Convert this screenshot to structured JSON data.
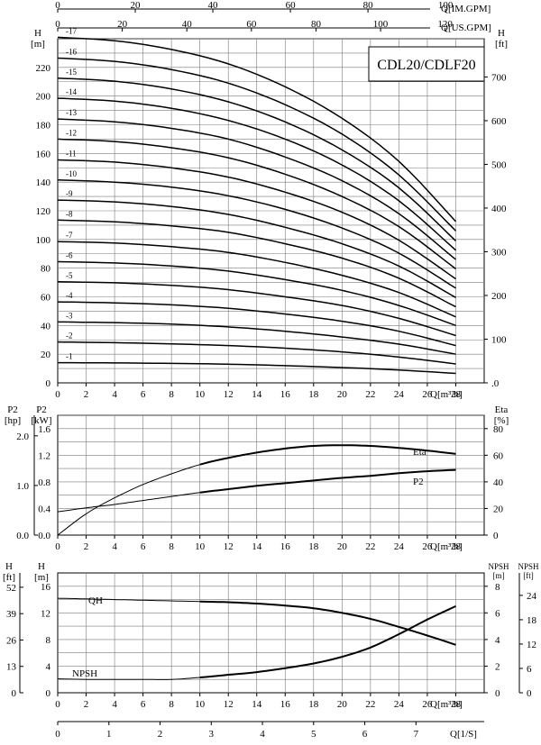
{
  "colors": {
    "ink": "#000000",
    "grid": "#7a7a7a",
    "background": "#ffffff"
  },
  "chart_data": [
    {
      "type": "line",
      "title": "CDL20/CDLF20",
      "xlabel": "Q[m³/h]",
      "ylabel_left_unit": "[m]",
      "ylabel_left": "H",
      "ylabel_right_unit": "[ft]",
      "ylabel_right": "H",
      "top_axis_1_label": "Q[IM.GPM]",
      "top_axis_2_label": "Q[US.GPM]",
      "top_axis_1_ticks": [
        "0",
        "20",
        "40",
        "60",
        "80",
        "100"
      ],
      "top_axis_2_ticks": [
        "0",
        "20",
        "40",
        "60",
        "80",
        "100",
        "120"
      ],
      "x_ticks": [
        "0",
        "2",
        "4",
        "6",
        "8",
        "10",
        "12",
        "14",
        "16",
        "18",
        "20",
        "22",
        "24",
        "26",
        "28"
      ],
      "y_ticks_left": [
        "0",
        "20",
        "40",
        "60",
        "80",
        "100",
        "120",
        "140",
        "160",
        "180",
        "200",
        "220"
      ],
      "y_ticks_right": [
        ".0",
        "100",
        "200",
        "300",
        "400",
        "500",
        "600",
        "700"
      ],
      "xlim": [
        0,
        30
      ],
      "ylim": [
        0,
        240
      ],
      "grid": true,
      "series": [
        {
          "name": "-1",
          "x": [
            0,
            4,
            8,
            12,
            16,
            20,
            24,
            28
          ],
          "values": [
            14.1,
            13.9,
            13.6,
            13.0,
            12.0,
            10.7,
            8.9,
            6.6
          ]
        },
        {
          "name": "-2",
          "x": [
            0,
            4,
            8,
            12,
            16,
            20,
            24,
            28
          ],
          "values": [
            28.5,
            28.0,
            27.2,
            26.0,
            24.2,
            21.6,
            18.0,
            13.2
          ]
        },
        {
          "name": "-3",
          "x": [
            0,
            4,
            8,
            12,
            16,
            20,
            24,
            28
          ],
          "values": [
            42.5,
            42.0,
            41.0,
            39.0,
            36.0,
            32.0,
            27.0,
            20.0
          ]
        },
        {
          "name": "-4",
          "x": [
            0,
            4,
            8,
            12,
            16,
            20,
            24,
            28
          ],
          "values": [
            56.5,
            55.8,
            54.4,
            52.0,
            48.0,
            43.0,
            36.0,
            26.0
          ]
        },
        {
          "name": "-5",
          "x": [
            0,
            4,
            8,
            12,
            16,
            20,
            24,
            28
          ],
          "values": [
            70.5,
            69.8,
            68.0,
            65.0,
            60.0,
            54.0,
            45.0,
            33.0
          ]
        },
        {
          "name": "-6",
          "x": [
            0,
            4,
            8,
            12,
            16,
            20,
            24,
            28
          ],
          "values": [
            84.5,
            83.6,
            81.5,
            78.0,
            72.0,
            64.5,
            54.0,
            40.0
          ]
        },
        {
          "name": "-7",
          "x": [
            0,
            4,
            8,
            12,
            16,
            20,
            24,
            28
          ],
          "values": [
            98.5,
            97.5,
            95.0,
            91.0,
            84.0,
            75.0,
            63.0,
            46.0
          ]
        },
        {
          "name": "-8",
          "x": [
            0,
            4,
            8,
            12,
            16,
            20,
            24,
            28
          ],
          "values": [
            113.5,
            112.3,
            109.5,
            105.0,
            97.0,
            87.0,
            73.0,
            53.0
          ]
        },
        {
          "name": "-9",
          "x": [
            0,
            4,
            8,
            12,
            16,
            20,
            24,
            28
          ],
          "values": [
            127.5,
            126.2,
            123.0,
            117.5,
            108.5,
            97.0,
            81.5,
            59.5
          ]
        },
        {
          "name": "-10",
          "x": [
            0,
            4,
            8,
            12,
            16,
            20,
            24,
            28
          ],
          "values": [
            141.5,
            140.0,
            136.5,
            130.5,
            121.0,
            108.0,
            90.5,
            66.0
          ]
        },
        {
          "name": "-11",
          "x": [
            0,
            4,
            8,
            12,
            16,
            20,
            24,
            28
          ],
          "values": [
            155.5,
            154.0,
            150.0,
            143.5,
            133.0,
            119.0,
            99.5,
            72.5
          ]
        },
        {
          "name": "-12",
          "x": [
            0,
            4,
            8,
            12,
            16,
            20,
            24,
            28
          ],
          "values": [
            170.0,
            168.3,
            164.0,
            157.0,
            145.5,
            130.0,
            109.0,
            79.5
          ]
        },
        {
          "name": "-13",
          "x": [
            0,
            4,
            8,
            12,
            16,
            20,
            24,
            28
          ],
          "values": [
            184.0,
            182.1,
            177.5,
            170.0,
            157.5,
            141.0,
            118.0,
            86.0
          ]
        },
        {
          "name": "-14",
          "x": [
            0,
            4,
            8,
            12,
            16,
            20,
            24,
            28
          ],
          "values": [
            198.5,
            196.5,
            191.5,
            183.0,
            170.0,
            152.0,
            127.0,
            92.5
          ]
        },
        {
          "name": "-15",
          "x": [
            0,
            4,
            8,
            12,
            16,
            20,
            24,
            28
          ],
          "values": [
            212.5,
            210.4,
            205.0,
            196.0,
            182.0,
            162.5,
            136.0,
            99.0
          ]
        },
        {
          "name": "-16",
          "x": [
            0,
            4,
            8,
            12,
            16,
            20,
            24,
            28
          ],
          "values": [
            226.5,
            224.2,
            218.5,
            209.0,
            194.0,
            173.5,
            145.0,
            106.0
          ]
        },
        {
          "name": "-17",
          "x": [
            0,
            4,
            8,
            12,
            16,
            20,
            24,
            28
          ],
          "values": [
            241.0,
            238.6,
            232.5,
            222.5,
            206.5,
            184.5,
            154.5,
            112.5
          ]
        }
      ]
    },
    {
      "type": "line",
      "xlabel": "Q[m³/h]",
      "ylabel_p2hp": "P2",
      "ylabel_p2hp_unit": "[hp]",
      "ylabel_p2kw": "P2",
      "ylabel_p2kw_unit": "[kW]",
      "ylabel_right": "Eta",
      "ylabel_right_unit": "[%]",
      "hp_ticks": [
        "0.0",
        "1.0",
        "2.0"
      ],
      "kw_ticks": [
        "0.0",
        "0.4",
        "0.8",
        "1.2",
        "1.6"
      ],
      "eta_ticks": [
        "0",
        "20",
        "40",
        "60",
        "80"
      ],
      "x_ticks": [
        "0",
        "2",
        "4",
        "6",
        "8",
        "10",
        "12",
        "14",
        "16",
        "18",
        "20",
        "22",
        "24",
        "26",
        "28"
      ],
      "xlim": [
        0,
        30
      ],
      "grid": true,
      "series": [
        {
          "name": "Eta",
          "x": [
            0,
            2,
            4,
            6,
            8,
            10,
            12,
            14,
            16,
            18,
            20,
            22,
            24,
            26,
            28
          ],
          "values": [
            0,
            16,
            28,
            38,
            46,
            53,
            58,
            62,
            65,
            67,
            67.5,
            67,
            65.5,
            63.5,
            61
          ]
        },
        {
          "name": "P2",
          "x": [
            0,
            2,
            4,
            6,
            8,
            10,
            12,
            14,
            16,
            18,
            20,
            22,
            24,
            26,
            28
          ],
          "values": [
            0.35,
            0.41,
            0.46,
            0.52,
            0.58,
            0.64,
            0.69,
            0.74,
            0.78,
            0.82,
            0.86,
            0.89,
            0.93,
            0.96,
            0.98
          ]
        }
      ]
    },
    {
      "type": "line",
      "xlabel": "Q[m³/h]",
      "x2label": "Q[1/S]",
      "ylabel_hft": "H",
      "ylabel_hft_unit": "[ft]",
      "ylabel_hm": "H",
      "ylabel_hm_unit": "[m]",
      "ylabel_npsh_m": "NPSH",
      "ylabel_npsh_m_unit": "[m]",
      "ylabel_npsh_ft": "NPSH",
      "ylabel_npsh_ft_unit": "[ft]",
      "hft_ticks": [
        "0",
        "13",
        "26",
        "39",
        "52"
      ],
      "hm_ticks": [
        "0",
        "4",
        "8",
        "12",
        "16"
      ],
      "npsh_m_ticks": [
        "0",
        "2",
        "4",
        "6",
        "8"
      ],
      "npsh_ft_ticks": [
        "0",
        "6",
        "12",
        "18",
        "24"
      ],
      "x_ticks": [
        "0",
        "2",
        "4",
        "6",
        "8",
        "10",
        "12",
        "14",
        "16",
        "18",
        "20",
        "22",
        "24",
        "26",
        "28"
      ],
      "x2_ticks": [
        "0",
        "1",
        "2",
        "3",
        "4",
        "5",
        "6",
        "7"
      ],
      "xlim": [
        0,
        30
      ],
      "grid": true,
      "series": [
        {
          "name": "QH",
          "x": [
            0,
            2,
            4,
            6,
            8,
            10,
            12,
            14,
            16,
            18,
            20,
            22,
            24,
            26,
            28
          ],
          "values": [
            14.2,
            14.1,
            14.0,
            13.9,
            13.8,
            13.7,
            13.6,
            13.4,
            13.1,
            12.7,
            12.0,
            11.1,
            9.9,
            8.6,
            7.2
          ]
        },
        {
          "name": "NPSH",
          "x": [
            0,
            2,
            4,
            6,
            8,
            10,
            12,
            14,
            16,
            18,
            20,
            22,
            24,
            26,
            28
          ],
          "values": [
            1.05,
            1.0,
            1.0,
            1.0,
            1.0,
            1.15,
            1.35,
            1.55,
            1.85,
            2.2,
            2.7,
            3.4,
            4.4,
            5.5,
            6.5
          ]
        }
      ]
    }
  ]
}
